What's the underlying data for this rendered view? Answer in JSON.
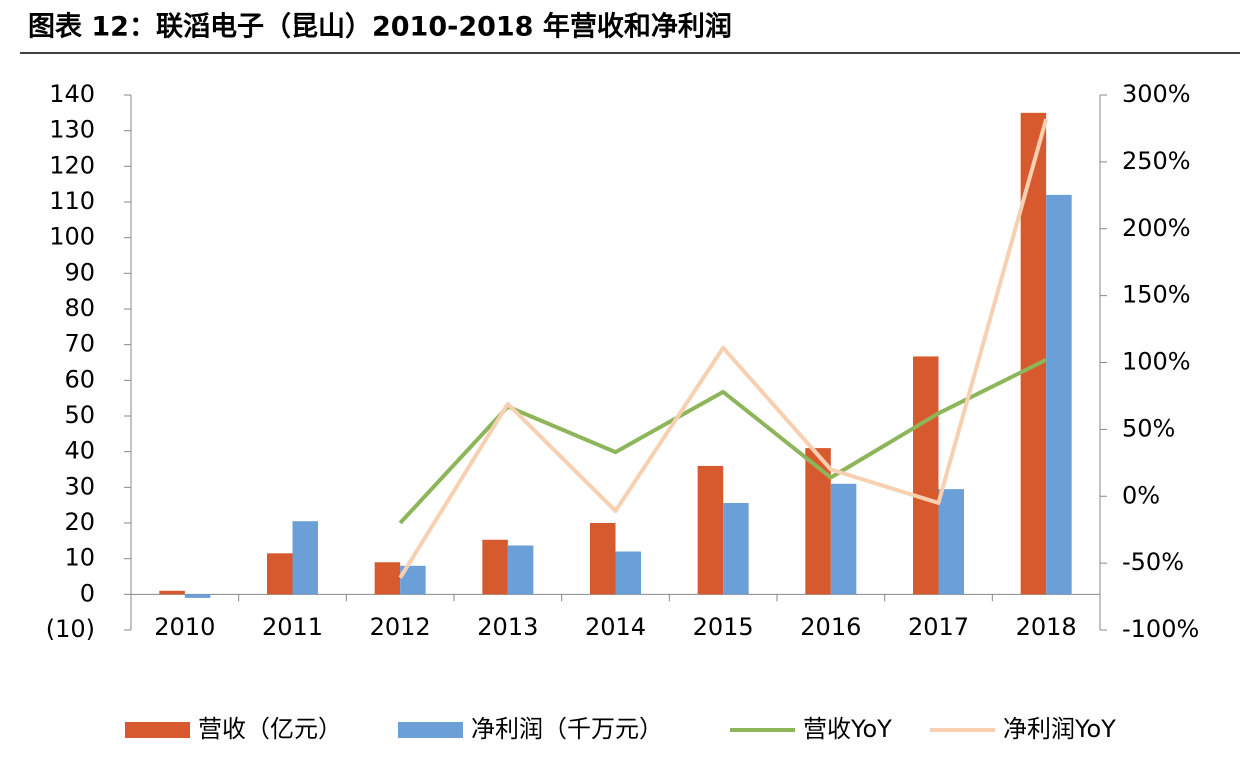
{
  "chart_data": {
    "type": "bar-line",
    "title": "图表 12：联滔电子（昆山）2010-2018 年营收和净利润",
    "categories": [
      "2010",
      "2011",
      "2012",
      "2013",
      "2014",
      "2015",
      "2016",
      "2017",
      "2018"
    ],
    "series": [
      {
        "name": "营收（亿元）",
        "type": "bar",
        "color": "#d65a2d",
        "values": [
          1,
          11.5,
          9,
          15.3,
          20,
          36,
          41,
          66.7,
          135
        ]
      },
      {
        "name": "净利润（千万元）",
        "type": "bar",
        "color": "#6a9fd8",
        "values": [
          -1,
          20.5,
          8,
          13.7,
          12,
          25.6,
          31,
          29.5,
          112
        ]
      },
      {
        "name": "营收YoY",
        "type": "line",
        "axis": "y2",
        "color": "#8db55a",
        "values": [
          null,
          null,
          -20,
          67,
          33,
          78,
          14,
          62,
          102
        ]
      },
      {
        "name": "净利润YoY",
        "type": "line",
        "axis": "y2",
        "color": "#f7d0b2",
        "values": [
          null,
          null,
          -61,
          69,
          -11,
          111,
          20,
          -5,
          282
        ]
      }
    ],
    "ylim": [
      -10,
      140
    ],
    "yticks": [
      {
        "value": -10,
        "label": "(10)",
        "color": "#e8341c"
      },
      0,
      10,
      20,
      30,
      40,
      50,
      60,
      70,
      80,
      90,
      100,
      110,
      120,
      130,
      140
    ],
    "y2lim": [
      -100,
      300
    ],
    "y2ticks": [
      {
        "value": -100,
        "label": "-100%"
      },
      {
        "value": -50,
        "label": "-50%"
      },
      {
        "value": 0,
        "label": "0%"
      },
      {
        "value": 50,
        "label": "50%"
      },
      {
        "value": 100,
        "label": "100%"
      },
      {
        "value": 150,
        "label": "150%"
      },
      {
        "value": 200,
        "label": "200%"
      },
      {
        "value": 250,
        "label": "250%"
      },
      {
        "value": 300,
        "label": "300%"
      }
    ],
    "legend": "bottom"
  }
}
